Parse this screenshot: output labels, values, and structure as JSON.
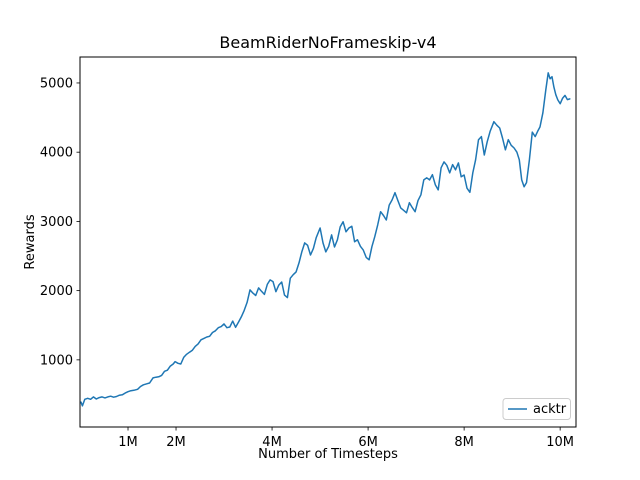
{
  "chart_data": {
    "type": "line",
    "title": "BeamRiderNoFrameskip-v4",
    "xlabel": "Number of Timesteps",
    "ylabel": "Rewards",
    "xlim": [
      0,
      10.33
    ],
    "ylim": [
      30,
      5375
    ],
    "grid": false,
    "x_ticks": {
      "values": [
        1,
        2,
        4,
        6,
        8,
        10
      ],
      "labels": [
        "1M",
        "2M",
        "4M",
        "6M",
        "8M",
        "10M"
      ]
    },
    "y_ticks": {
      "values": [
        1000,
        2000,
        3000,
        4000,
        5000
      ],
      "labels": [
        "1000",
        "2000",
        "3000",
        "4000",
        "5000"
      ]
    },
    "legend": {
      "position": "lower right",
      "entries": [
        {
          "label": "acktr",
          "color": "#1f77b4"
        }
      ]
    },
    "series": [
      {
        "name": "acktr",
        "color": "#1f77b4",
        "line_width": 1.5,
        "points": [
          [
            0.02,
            390
          ],
          [
            0.05,
            335
          ],
          [
            0.1,
            430
          ],
          [
            0.16,
            445
          ],
          [
            0.22,
            430
          ],
          [
            0.28,
            465
          ],
          [
            0.34,
            435
          ],
          [
            0.4,
            455
          ],
          [
            0.46,
            465
          ],
          [
            0.52,
            450
          ],
          [
            0.58,
            465
          ],
          [
            0.64,
            475
          ],
          [
            0.7,
            460
          ],
          [
            0.76,
            470
          ],
          [
            0.82,
            490
          ],
          [
            0.88,
            495
          ],
          [
            0.94,
            520
          ],
          [
            1.0,
            540
          ],
          [
            1.06,
            555
          ],
          [
            1.12,
            560
          ],
          [
            1.2,
            575
          ],
          [
            1.26,
            615
          ],
          [
            1.32,
            640
          ],
          [
            1.4,
            655
          ],
          [
            1.45,
            665
          ],
          [
            1.52,
            740
          ],
          [
            1.58,
            750
          ],
          [
            1.64,
            755
          ],
          [
            1.7,
            775
          ],
          [
            1.76,
            835
          ],
          [
            1.82,
            850
          ],
          [
            1.88,
            910
          ],
          [
            1.94,
            940
          ],
          [
            1.98,
            975
          ],
          [
            2.04,
            950
          ],
          [
            2.1,
            940
          ],
          [
            2.16,
            1035
          ],
          [
            2.22,
            1080
          ],
          [
            2.28,
            1110
          ],
          [
            2.34,
            1140
          ],
          [
            2.4,
            1195
          ],
          [
            2.46,
            1230
          ],
          [
            2.52,
            1290
          ],
          [
            2.58,
            1310
          ],
          [
            2.64,
            1330
          ],
          [
            2.7,
            1340
          ],
          [
            2.76,
            1395
          ],
          [
            2.82,
            1420
          ],
          [
            2.88,
            1465
          ],
          [
            2.94,
            1480
          ],
          [
            3.0,
            1520
          ],
          [
            3.06,
            1465
          ],
          [
            3.12,
            1475
          ],
          [
            3.18,
            1560
          ],
          [
            3.24,
            1470
          ],
          [
            3.3,
            1545
          ],
          [
            3.36,
            1620
          ],
          [
            3.42,
            1715
          ],
          [
            3.48,
            1830
          ],
          [
            3.54,
            2010
          ],
          [
            3.6,
            1965
          ],
          [
            3.66,
            1930
          ],
          [
            3.72,
            2040
          ],
          [
            3.78,
            1990
          ],
          [
            3.84,
            1945
          ],
          [
            3.9,
            2090
          ],
          [
            3.96,
            2155
          ],
          [
            4.02,
            2130
          ],
          [
            4.08,
            1985
          ],
          [
            4.14,
            2080
          ],
          [
            4.2,
            2125
          ],
          [
            4.26,
            1935
          ],
          [
            4.32,
            1900
          ],
          [
            4.38,
            2180
          ],
          [
            4.44,
            2230
          ],
          [
            4.5,
            2270
          ],
          [
            4.56,
            2400
          ],
          [
            4.62,
            2560
          ],
          [
            4.68,
            2690
          ],
          [
            4.74,
            2655
          ],
          [
            4.8,
            2515
          ],
          [
            4.86,
            2610
          ],
          [
            4.92,
            2765
          ],
          [
            5.0,
            2905
          ],
          [
            5.06,
            2690
          ],
          [
            5.12,
            2560
          ],
          [
            5.18,
            2640
          ],
          [
            5.24,
            2805
          ],
          [
            5.3,
            2630
          ],
          [
            5.36,
            2735
          ],
          [
            5.42,
            2920
          ],
          [
            5.48,
            2995
          ],
          [
            5.54,
            2850
          ],
          [
            5.6,
            2905
          ],
          [
            5.66,
            2930
          ],
          [
            5.72,
            2705
          ],
          [
            5.78,
            2735
          ],
          [
            5.84,
            2640
          ],
          [
            5.9,
            2585
          ],
          [
            5.96,
            2480
          ],
          [
            6.02,
            2445
          ],
          [
            6.08,
            2635
          ],
          [
            6.14,
            2780
          ],
          [
            6.2,
            2950
          ],
          [
            6.26,
            3140
          ],
          [
            6.32,
            3085
          ],
          [
            6.38,
            3020
          ],
          [
            6.44,
            3235
          ],
          [
            6.5,
            3310
          ],
          [
            6.56,
            3415
          ],
          [
            6.62,
            3300
          ],
          [
            6.68,
            3195
          ],
          [
            6.74,
            3160
          ],
          [
            6.8,
            3125
          ],
          [
            6.86,
            3270
          ],
          [
            6.92,
            3200
          ],
          [
            6.98,
            3140
          ],
          [
            7.04,
            3300
          ],
          [
            7.1,
            3385
          ],
          [
            7.16,
            3600
          ],
          [
            7.22,
            3630
          ],
          [
            7.28,
            3600
          ],
          [
            7.34,
            3675
          ],
          [
            7.4,
            3530
          ],
          [
            7.46,
            3455
          ],
          [
            7.52,
            3775
          ],
          [
            7.58,
            3860
          ],
          [
            7.64,
            3810
          ],
          [
            7.7,
            3700
          ],
          [
            7.76,
            3820
          ],
          [
            7.82,
            3745
          ],
          [
            7.88,
            3845
          ],
          [
            7.94,
            3645
          ],
          [
            8.0,
            3670
          ],
          [
            8.06,
            3480
          ],
          [
            8.12,
            3420
          ],
          [
            8.18,
            3700
          ],
          [
            8.24,
            3890
          ],
          [
            8.3,
            4180
          ],
          [
            8.36,
            4225
          ],
          [
            8.42,
            3960
          ],
          [
            8.48,
            4150
          ],
          [
            8.54,
            4300
          ],
          [
            8.62,
            4440
          ],
          [
            8.68,
            4390
          ],
          [
            8.74,
            4350
          ],
          [
            8.8,
            4205
          ],
          [
            8.86,
            4035
          ],
          [
            8.92,
            4180
          ],
          [
            8.98,
            4100
          ],
          [
            9.04,
            4060
          ],
          [
            9.1,
            4000
          ],
          [
            9.15,
            3890
          ],
          [
            9.2,
            3600
          ],
          [
            9.25,
            3500
          ],
          [
            9.3,
            3560
          ],
          [
            9.36,
            3890
          ],
          [
            9.42,
            4290
          ],
          [
            9.48,
            4225
          ],
          [
            9.53,
            4300
          ],
          [
            9.58,
            4365
          ],
          [
            9.64,
            4570
          ],
          [
            9.7,
            4900
          ],
          [
            9.75,
            5145
          ],
          [
            9.79,
            5060
          ],
          [
            9.83,
            5090
          ],
          [
            9.87,
            4940
          ],
          [
            9.91,
            4830
          ],
          [
            9.95,
            4755
          ],
          [
            10.0,
            4700
          ],
          [
            10.05,
            4780
          ],
          [
            10.1,
            4820
          ],
          [
            10.15,
            4760
          ],
          [
            10.2,
            4770
          ]
        ]
      }
    ]
  },
  "colors": {
    "background": "#ffffff",
    "text": "#000000",
    "spines": "#000000",
    "legend_border": "#cccccc",
    "series_blue": "#1f77b4"
  }
}
